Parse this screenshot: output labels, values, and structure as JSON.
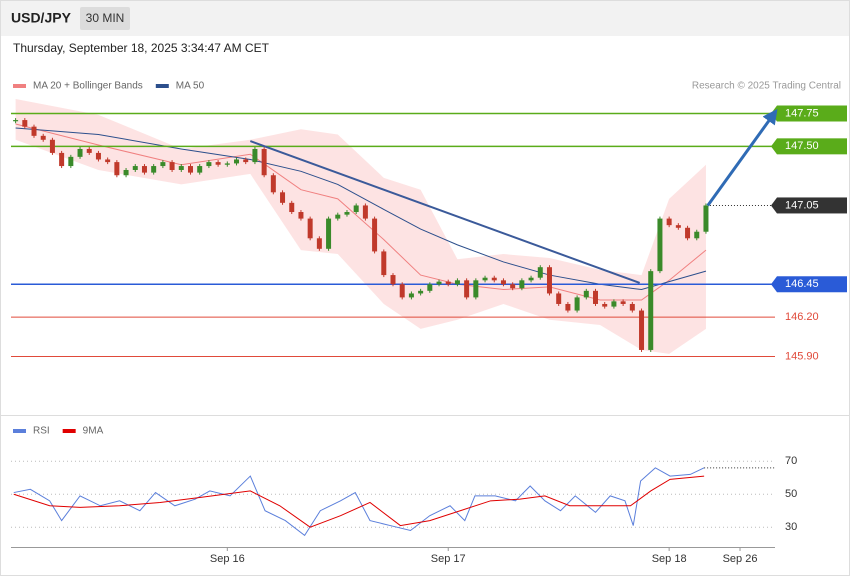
{
  "chart_data": {
    "type": "candlestick",
    "symbol": "USD/JPY",
    "timeframe": "30 MIN",
    "timestamp": "Thursday, September 18, 2025 3:34:47 AM CET",
    "credit": "Research © 2025 Trading Central",
    "xlim": [
      -0.5,
      82.5
    ],
    "xticks": [
      {
        "value": 23,
        "label": "Sep 16"
      },
      {
        "value": 47,
        "label": "Sep 17"
      },
      {
        "value": 71,
        "label": "Sep 18"
      },
      {
        "value": 78.7,
        "label": "Sep 26"
      }
    ],
    "ylim": [
      145.47,
      148.34
    ],
    "series": [
      {
        "name": "USD/JPY",
        "up_color": "#3a8a2a",
        "down_color": "#c0392b",
        "x": [
          0,
          1,
          2,
          3,
          4,
          5,
          6,
          7,
          8,
          9,
          10,
          11,
          12,
          13,
          14,
          15,
          16,
          17,
          18,
          19,
          20,
          21,
          22,
          23,
          24,
          25,
          26,
          27,
          28,
          29,
          30,
          31,
          32,
          33,
          34,
          35,
          36,
          37,
          38,
          39,
          40,
          41,
          42,
          43,
          44,
          45,
          46,
          47,
          48,
          49,
          50,
          51,
          52,
          53,
          54,
          55,
          56,
          57,
          58,
          59,
          60,
          61,
          62,
          63,
          64,
          65,
          66,
          67,
          68,
          69,
          70,
          71,
          72,
          73,
          74,
          75
        ],
        "values": [
          147.7,
          147.65,
          147.58,
          147.55,
          147.45,
          147.35,
          147.42,
          147.48,
          147.45,
          147.4,
          147.38,
          147.28,
          147.32,
          147.35,
          147.3,
          147.35,
          147.38,
          147.32,
          147.35,
          147.3,
          147.35,
          147.38,
          147.36,
          147.37,
          147.4,
          147.38,
          147.48,
          147.28,
          147.15,
          147.07,
          147.0,
          146.95,
          146.8,
          146.72,
          146.95,
          146.98,
          147.0,
          147.05,
          146.95,
          146.7,
          146.52,
          146.45,
          146.35,
          146.38,
          146.4,
          146.45,
          146.47,
          146.45,
          146.48,
          146.35,
          146.48,
          146.5,
          146.48,
          146.45,
          146.42,
          146.48,
          146.5,
          146.58,
          146.38,
          146.3,
          146.25,
          146.35,
          146.4,
          146.3,
          146.28,
          146.32,
          146.3,
          146.25,
          145.95,
          146.55,
          146.95,
          146.9,
          146.88,
          146.8,
          146.85,
          147.05
        ]
      }
    ],
    "overlays": [
      {
        "name": "MA 20 + Bollinger Bands",
        "color": "#f08080",
        "band_color": "#fddede",
        "x": [
          0,
          9,
          18,
          25.5,
          31,
          35,
          40,
          44,
          48,
          53,
          58,
          63.5,
          68,
          71,
          75
        ],
        "values": [
          147.67,
          147.51,
          147.36,
          147.44,
          147.17,
          147.1,
          146.79,
          146.52,
          146.45,
          146.41,
          146.43,
          146.33,
          146.33,
          146.48,
          146.71
        ],
        "upper": [
          147.86,
          147.74,
          147.48,
          147.55,
          147.63,
          147.59,
          147.26,
          147.17,
          146.64,
          146.68,
          146.65,
          146.56,
          146.52,
          147.1,
          147.36
        ],
        "lower": [
          147.55,
          147.32,
          147.21,
          147.29,
          146.71,
          146.68,
          146.3,
          146.11,
          146.18,
          146.3,
          146.18,
          146.14,
          145.95,
          145.92,
          146.11
        ]
      },
      {
        "name": "MA 50",
        "color": "#2c4f8c",
        "x": [
          0,
          9,
          18,
          25.5,
          31,
          35,
          40,
          44,
          48,
          53,
          58,
          63.5,
          68,
          71,
          75
        ],
        "values": [
          147.64,
          147.59,
          147.48,
          147.4,
          147.31,
          147.21,
          147.02,
          146.87,
          146.75,
          146.62,
          146.52,
          146.45,
          146.41,
          146.47,
          146.55
        ]
      }
    ],
    "levels": [
      {
        "value": 147.75,
        "color": "#5aac1a",
        "kind": "box",
        "style": "solid"
      },
      {
        "value": 147.5,
        "label": "147.50",
        "color": "#5aac1a",
        "kind": "box",
        "style": "solid"
      },
      {
        "value": 147.05,
        "color": "#333333",
        "kind": "box",
        "style": "dotted"
      },
      {
        "value": 146.45,
        "color": "#2a5bd7",
        "kind": "box",
        "style": "solid"
      },
      {
        "value": 146.2,
        "label": "146.20",
        "color": "#e04a3a",
        "kind": "text",
        "style": "solid"
      },
      {
        "value": 145.9,
        "label": "145.90",
        "color": "#e04a3a",
        "kind": "text",
        "style": "solid"
      }
    ],
    "drawings": [
      {
        "kind": "line",
        "color": "#3b5a9a",
        "points": [
          [
            25.5,
            147.54
          ],
          [
            67.8,
            146.46
          ]
        ]
      },
      {
        "kind": "arrow",
        "color": "#2f6bb5",
        "points": [
          [
            75.2,
            147.05
          ],
          [
            82.2,
            147.73
          ]
        ]
      }
    ],
    "indicator": {
      "ylim": [
        18,
        95
      ],
      "yticks": [
        30,
        50,
        70
      ],
      "series": [
        {
          "name": "RSI",
          "color": "#5b7fdb",
          "x": [
            -0.2,
            1.6,
            3.7,
            5.0,
            7.0,
            9.2,
            11.3,
            13.5,
            15.2,
            17.3,
            19.5,
            21.1,
            23.3,
            25.5,
            27.1,
            29.3,
            31.4,
            33.1,
            35.3,
            36.9,
            38.5,
            40.7,
            42.9,
            45.0,
            47.2,
            48.8,
            49.9,
            52.1,
            54.3,
            55.9,
            57.5,
            59.2,
            60.8,
            63.0,
            64.6,
            66.2,
            67.1,
            67.9,
            69.5,
            71.1,
            73.3,
            74.8
          ],
          "values": [
            51,
            53,
            46,
            34,
            49,
            43,
            46,
            40,
            51,
            43,
            47,
            52,
            49,
            61,
            40,
            34,
            25,
            40,
            46,
            51,
            34,
            31,
            28,
            37,
            43,
            34,
            49,
            49,
            46,
            55,
            46,
            40,
            49,
            39,
            49,
            46,
            31,
            58,
            66,
            61,
            62,
            66
          ]
        },
        {
          "name": "9MA",
          "color": "#e00000",
          "x": [
            -0.2,
            3.7,
            7.0,
            11.3,
            15.7,
            20.0,
            25.5,
            28.7,
            32.0,
            35.3,
            38.5,
            41.8,
            45.0,
            48.3,
            51.6,
            54.8,
            57.5,
            60.2,
            63.5,
            66.8,
            69.0,
            71.1,
            74.8
          ],
          "values": [
            50,
            43,
            42,
            43,
            45,
            48,
            52,
            43,
            30,
            37,
            45,
            31,
            34,
            40,
            46,
            47,
            49,
            43,
            43,
            43,
            52,
            59,
            61
          ]
        }
      ]
    }
  }
}
